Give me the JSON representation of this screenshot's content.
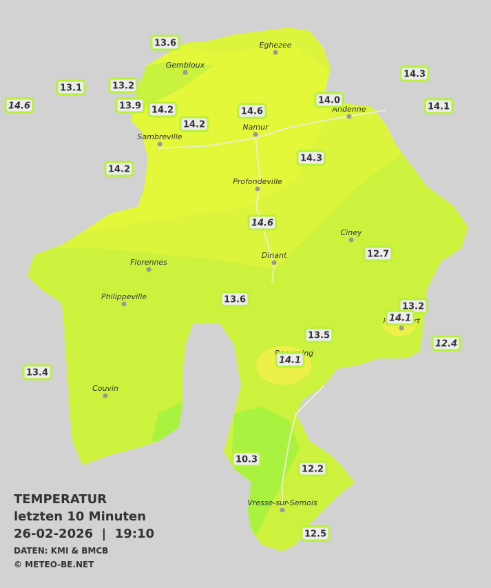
{
  "legend": {
    "title": "TEMPERATUR",
    "subtitle": "letzten 10 Minuten",
    "timestamp": "26-02-2026  |  19:10",
    "source": "DATEN: KMI & BMCB",
    "credit": "© METEO-BE.NET"
  },
  "stations": [
    "13.6",
    "13.1",
    "13.2",
    "14.6",
    "13.9",
    "14.2",
    "14.2",
    "14.6",
    "14.0",
    "14.3",
    "14.1",
    "14.3",
    "14.2",
    "14.6",
    "12.7",
    "13.6",
    "13.2",
    "14.1",
    "13.5",
    "12.4",
    "14.1",
    "13.4",
    "10.3",
    "12.2",
    "12.5"
  ],
  "towns": [
    "Eghezee",
    "Gembloux",
    "Andenne",
    "Namur",
    "Sambreville",
    "Profondeville",
    "Ciney",
    "Dinant",
    "Florennes",
    "Philippeville",
    "Rochefort",
    "Beauraing",
    "Couvin",
    "Vresse-sur-Semois"
  ]
}
